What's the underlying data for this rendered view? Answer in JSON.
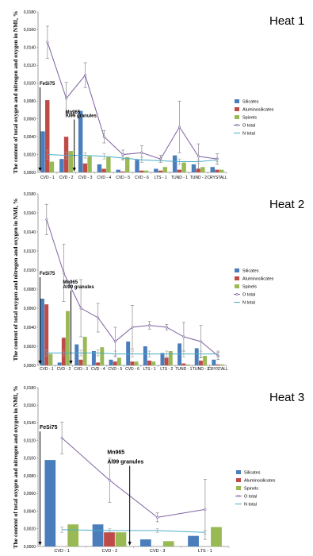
{
  "chart_data": [
    {
      "type": "bar",
      "panel_label": "Heat 1",
      "ylabel": "The content of total oxygen and nitrogen and oxygen in NMI, %",
      "ylim": [
        0,
        0.018
      ],
      "yticks": [
        "0,0000",
        "0,0020",
        "0,0040",
        "0,0060",
        "0,0080",
        "0,0100",
        "0,0120",
        "0,0140",
        "0,0160",
        "0,0180"
      ],
      "categories": [
        "CVD - 1",
        "CVD - 2",
        "CVD - 3",
        "CVD - 4",
        "CVD - 5",
        "CVD - 6",
        "LTS - 1",
        "TUND - 1",
        "TUND - 2",
        "CRYSTALL"
      ],
      "series": [
        {
          "name": "Silicates",
          "kind": "bar",
          "color": "#4a7ebb",
          "values": [
            0.0046,
            0.0015,
            0.0069,
            0.0009,
            0.0003,
            0.0014,
            0.0004,
            0.0019,
            0.0009,
            0.0006
          ]
        },
        {
          "name": "Aluminosilicates",
          "kind": "bar",
          "color": "#be4b48",
          "values": [
            0.0081,
            0.004,
            0.001,
            0.0004,
            0.0001,
            0.0002,
            0.0002,
            0.0003,
            0.0004,
            0.0003
          ]
        },
        {
          "name": "Spinels",
          "kind": "bar",
          "color": "#98b954",
          "values": [
            0.0012,
            0.0024,
            0.0018,
            0.0017,
            0.0017,
            0.0002,
            0.0006,
            0.0011,
            0.0006,
            0.0003
          ]
        },
        {
          "name": "O total",
          "kind": "line",
          "color": "#7d60a0",
          "values": [
            0.0146,
            0.0083,
            0.0109,
            0.004,
            0.002,
            0.0022,
            0.0015,
            0.0051,
            0.0018,
            0.0015
          ],
          "err": [
            0.0018,
            0.0018,
            0.0014,
            0.0007,
            0.0005,
            0.0008,
            0.0004,
            0.0029,
            0.0014,
            0.0006
          ]
        },
        {
          "name": "N total",
          "kind": "line",
          "color": "#4bacc6",
          "values": [
            0.002,
            0.0019,
            0.0019,
            0.0018,
            0.0016,
            0.0014,
            0.0013,
            0.0012,
            0.0012,
            0.0014
          ],
          "err": [
            0.0005,
            0.0004,
            0.0003,
            0.0003,
            0.0002,
            0.0003,
            0.0002,
            0.0003,
            0.0002,
            0.0002
          ]
        }
      ],
      "legend": "right",
      "annotations": [
        {
          "text": "FeSi75",
          "category": "CVD - 1",
          "value": 0.0098
        },
        {
          "text": "Mn965",
          "category": "CVD - 2",
          "value": 0.0066
        },
        {
          "text": "Al99 granules",
          "category": "CVD - 2",
          "value": 0.0062
        }
      ]
    },
    {
      "type": "bar",
      "panel_label": "Heat 2",
      "ylabel": "The content of total oxygen and nitrogen and oxygen in NMI, %",
      "ylim": [
        0,
        0.018
      ],
      "yticks": [
        "0,0000",
        "0,0020",
        "0,0040",
        "0,0060",
        "0,0080",
        "0,0100",
        "0,0120",
        "0,0140",
        "0,0160",
        "0,0180"
      ],
      "categories": [
        "CVD - 1",
        "CVD - 2",
        "CVD - 3",
        "CVD - 4",
        "CVD - 5",
        "CVD - 6",
        "LTS - 1",
        "LTS - 2",
        "TUND - 1",
        "TUND - 2",
        "CRYSTALL"
      ],
      "series": [
        {
          "name": "Silicates",
          "kind": "bar",
          "color": "#4a7ebb",
          "values": [
            0.007,
            0.0003,
            0.0022,
            0.0015,
            0.0006,
            0.0025,
            0.002,
            0.0013,
            0.0023,
            0.0018,
            0.0006
          ]
        },
        {
          "name": "Aluminosilicates",
          "kind": "bar",
          "color": "#be4b48",
          "values": [
            0.0064,
            0.0029,
            0.0006,
            0.0003,
            0.0004,
            0.0004,
            0.0005,
            0.0008,
            0.0002,
            0.0005,
            0.0001
          ]
        },
        {
          "name": "Spinels",
          "kind": "bar",
          "color": "#98b954",
          "values": [
            0.0012,
            0.0057,
            0.003,
            0.0019,
            0.0008,
            0.0004,
            0.0004,
            0.0015,
            0.0001,
            0.001,
            0.0001
          ]
        },
        {
          "name": "O total",
          "kind": "line",
          "color": "#7d60a0",
          "values": [
            0.0153,
            0.0097,
            0.006,
            0.005,
            0.0025,
            0.004,
            0.0042,
            0.004,
            0.003,
            0.0025,
            0.001
          ],
          "err": [
            0.0016,
            0.003,
            0.003,
            0.0015,
            0.0015,
            0.0023,
            0.0004,
            0.0003,
            0.0015,
            0.0017,
            0.0004
          ]
        },
        {
          "name": "N total",
          "kind": "line",
          "color": "#4bacc6",
          "values": [
            0.0013,
            0.0013,
            0.0013,
            0.0013,
            0.0012,
            0.0012,
            0.0012,
            0.0012,
            0.0012,
            0.0012,
            0.0012
          ],
          "err": [
            0.0003,
            0.0003,
            0.0003,
            0.0003,
            0.0003,
            0.0003,
            0.0003,
            0.0003,
            0.0003,
            0.0003,
            0.0003
          ]
        }
      ],
      "legend": "right",
      "annotations": [
        {
          "text": "FeSi75",
          "category": "CVD - 1",
          "value": 0.0095
        },
        {
          "text": "Mn965",
          "category": "CVD - 2",
          "value": 0.0086
        },
        {
          "text": "Al99 granules",
          "category": "CVD - 2",
          "value": 0.0081
        }
      ]
    },
    {
      "type": "bar",
      "panel_label": "Heat 3",
      "ylabel": "The content of total oxygen and nitrogen and oxygen in NMI, %",
      "ylim": [
        0,
        0.018
      ],
      "yticks": [
        "0,0000",
        "0,0020",
        "0,0040",
        "0,0060",
        "0,0080",
        "0,0100",
        "0,0120",
        "0,0140",
        "0,0160",
        "0,0180"
      ],
      "categories": [
        "CVD - 1",
        "CVD - 2",
        "CVD - 3",
        "LTS - 1"
      ],
      "series": [
        {
          "name": "Silicates",
          "kind": "bar",
          "color": "#4a7ebb",
          "values": [
            0.0098,
            0.0025,
            0.0008,
            0.0012
          ]
        },
        {
          "name": "Aluminosilicates",
          "kind": "bar",
          "color": "#be4b48",
          "values": [
            0.0,
            0.0016,
            0.0,
            0.0
          ]
        },
        {
          "name": "Spinels",
          "kind": "bar",
          "color": "#98b954",
          "values": [
            0.0025,
            0.0016,
            0.0006,
            0.0022
          ]
        },
        {
          "name": "O total",
          "kind": "line",
          "color": "#7d60a0",
          "values": [
            0.0123,
            0.0075,
            0.0033,
            0.0042
          ],
          "err": [
            0.0018,
            0.0025,
            0.0005,
            0.0034
          ]
        },
        {
          "name": "N total",
          "kind": "line",
          "color": "#4bacc6",
          "values": [
            0.0019,
            0.0018,
            0.0018,
            0.0016
          ],
          "err": [
            0.0003,
            0.0002,
            0.0002,
            0.0002
          ]
        }
      ],
      "legend": "right",
      "annotations": [
        {
          "text": "FeSi75",
          "category": "CVD - 1",
          "value": 0.0133
        },
        {
          "text": "Mn965",
          "category": "CVD - 2",
          "value": 0.0105
        },
        {
          "text": "Al99 granules",
          "category": "CVD - 2",
          "value": 0.0094
        }
      ]
    }
  ]
}
